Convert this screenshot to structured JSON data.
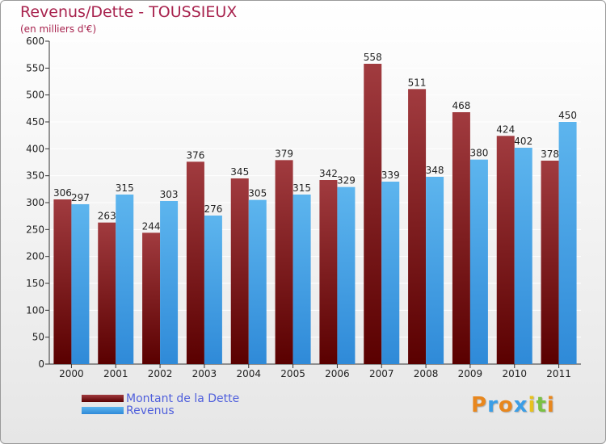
{
  "header": {
    "title": "Revenus/Dette - TOUSSIEUX",
    "subtitle": "(en milliers d'€)"
  },
  "logo": {
    "letters": [
      "P",
      "r",
      "o",
      "x",
      "i",
      "t",
      "i"
    ],
    "colors": [
      "#e8871e",
      "#3b9ee6",
      "#e8871e",
      "#3b9ee6",
      "#e8c11e",
      "#7ac143",
      "#e8871e"
    ]
  },
  "colors": {
    "dette_top": "#a13b3f",
    "dette_bottom": "#5a0000",
    "revenus_top": "#5db5ee",
    "revenus_bottom": "#2f8ad8",
    "grid": "#ffffff",
    "axis_text": "#222222"
  },
  "chart_data": {
    "type": "bar",
    "categories": [
      "2000",
      "2001",
      "2002",
      "2003",
      "2004",
      "2005",
      "2006",
      "2007",
      "2008",
      "2009",
      "2010",
      "2011"
    ],
    "series": [
      {
        "name": "Montant de la Dette",
        "values": [
          306,
          263,
          244,
          376,
          345,
          379,
          342,
          558,
          511,
          468,
          424,
          378
        ]
      },
      {
        "name": "Revenus",
        "values": [
          297,
          315,
          303,
          276,
          305,
          315,
          329,
          339,
          348,
          380,
          402,
          450
        ]
      }
    ],
    "ylim": [
      0,
      600
    ],
    "yticks": [
      0,
      50,
      100,
      150,
      200,
      250,
      300,
      350,
      400,
      450,
      500,
      550,
      600
    ],
    "grid": true,
    "legend_position": "bottom-left"
  }
}
